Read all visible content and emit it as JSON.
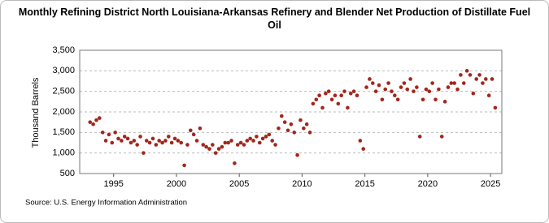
{
  "chart_data": {
    "type": "scatter",
    "title": "Monthly Refining District North Louisiana-Arkansas Refinery and Blender Net Production of Distillate Fuel Oil",
    "y_label": "Thousand Barrels",
    "source": "Source: U.S. Energy Information Administration",
    "color": "#a3261b",
    "grid": true,
    "xlim": [
      1992.3,
      2025.9
    ],
    "xticks": [
      1995,
      2000,
      2005,
      2010,
      2015,
      2020,
      2025
    ],
    "ylim": [
      500,
      3500
    ],
    "yticks": [
      {
        "value": 500,
        "label": "500"
      },
      {
        "value": 1000,
        "label": "1,000"
      },
      {
        "value": 1500,
        "label": "1,500"
      },
      {
        "value": 2000,
        "label": "2,000"
      },
      {
        "value": 2500,
        "label": "2,500"
      },
      {
        "value": 3000,
        "label": "3,000"
      },
      {
        "value": 3500,
        "label": "3,500"
      }
    ],
    "x": [
      1993.125,
      1993.375,
      1993.625,
      1993.875,
      1994.125,
      1994.375,
      1994.625,
      1994.875,
      1995.125,
      1995.375,
      1995.625,
      1995.875,
      1996.125,
      1996.375,
      1996.625,
      1996.875,
      1997.125,
      1997.375,
      1997.625,
      1997.875,
      1998.125,
      1998.375,
      1998.625,
      1998.875,
      1999.125,
      1999.375,
      1999.625,
      1999.875,
      2000.125,
      2000.375,
      2000.625,
      2000.875,
      2001.125,
      2001.375,
      2001.625,
      2001.875,
      2002.125,
      2002.375,
      2002.625,
      2002.875,
      2003.125,
      2003.375,
      2003.625,
      2003.875,
      2004.125,
      2004.375,
      2004.625,
      2004.875,
      2005.125,
      2005.375,
      2005.625,
      2005.875,
      2006.125,
      2006.375,
      2006.625,
      2006.875,
      2007.125,
      2007.375,
      2007.625,
      2007.875,
      2008.125,
      2008.375,
      2008.625,
      2008.875,
      2009.125,
      2009.375,
      2009.625,
      2009.875,
      2010.125,
      2010.375,
      2010.625,
      2010.875,
      2011.125,
      2011.375,
      2011.625,
      2011.875,
      2012.125,
      2012.375,
      2012.625,
      2012.875,
      2013.125,
      2013.375,
      2013.625,
      2013.875,
      2014.125,
      2014.375,
      2014.625,
      2014.875,
      2015.125,
      2015.375,
      2015.625,
      2015.875,
      2016.125,
      2016.375,
      2016.625,
      2016.875,
      2017.125,
      2017.375,
      2017.625,
      2017.875,
      2018.125,
      2018.375,
      2018.625,
      2018.875,
      2019.125,
      2019.375,
      2019.625,
      2019.875,
      2020.125,
      2020.375,
      2020.625,
      2020.875,
      2021.125,
      2021.375,
      2021.625,
      2021.875,
      2022.125,
      2022.375,
      2022.625,
      2022.875,
      2023.125,
      2023.375,
      2023.625,
      2023.875,
      2024.125,
      2024.375,
      2024.625,
      2024.875,
      2025.125,
      2025.375
    ],
    "values": [
      1750,
      1700,
      1800,
      1850,
      1500,
      1300,
      1450,
      1250,
      1500,
      1350,
      1300,
      1400,
      1350,
      1250,
      1300,
      1200,
      1400,
      1000,
      1300,
      1250,
      1350,
      1200,
      1300,
      1250,
      1300,
      1400,
      1250,
      1350,
      1300,
      1250,
      700,
      1200,
      1550,
      1450,
      1300,
      1600,
      1200,
      1150,
      1100,
      1200,
      1000,
      1100,
      1150,
      1250,
      1250,
      1300,
      750,
      1200,
      1250,
      1200,
      1300,
      1350,
      1300,
      1400,
      1250,
      1350,
      1400,
      1450,
      1300,
      1200,
      1600,
      1900,
      1750,
      1550,
      1700,
      1500,
      950,
      1800,
      1600,
      1700,
      1500,
      2200,
      2300,
      2400,
      2100,
      2450,
      2500,
      2300,
      2400,
      2200,
      2400,
      2500,
      2100,
      2450,
      2500,
      2400,
      1300,
      1100,
      2600,
      2800,
      2700,
      2500,
      2650,
      2300,
      2550,
      2700,
      2500,
      2400,
      2300,
      2600,
      2700,
      2550,
      2800,
      2500,
      2600,
      1400,
      2300,
      2550,
      2500,
      2700,
      2300,
      2550,
      1400,
      2250,
      2600,
      2700,
      2700,
      2550,
      2900,
      2700,
      3000,
      2900,
      2450,
      2800,
      2900,
      2700,
      2800,
      2400,
      2800,
      2100
    ]
  }
}
